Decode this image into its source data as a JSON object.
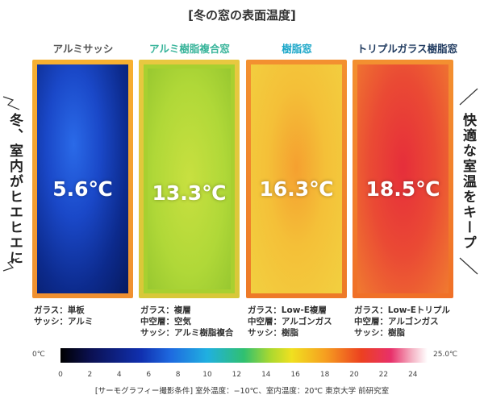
{
  "title": "[冬の窓の表面温度]",
  "left_caption": "冬、室内がヒエヒエに",
  "right_caption": "快適な室温をキープ",
  "windows": [
    {
      "name": "アルミサッシ",
      "temperature": "5.6℃",
      "specs": [
        "ガラス：単板",
        "サッシ：アルミ"
      ]
    },
    {
      "name": "アルミ樹脂複合窓",
      "temperature": "13.3℃",
      "specs": [
        "ガラス：複層",
        "中空層：空気",
        "サッシ：アルミ樹脂複合"
      ]
    },
    {
      "name": "樹脂窓",
      "temperature": "16.3℃",
      "specs": [
        "ガラス：Low-E複層",
        "中空層：アルゴンガス",
        "サッシ：樹脂"
      ]
    },
    {
      "name": "トリプルガラス樹脂窓",
      "temperature": "18.5℃",
      "specs": [
        "ガラス：Low-Eトリプル",
        "中空層：アルゴンガス",
        "サッシ：樹脂"
      ]
    }
  ],
  "scale": {
    "min_label": "0℃",
    "max_label": "25.0℃",
    "ticks": [
      0,
      2,
      4,
      6,
      8,
      10,
      12,
      14,
      16,
      18,
      20,
      22,
      24
    ]
  },
  "footnote": "[サーモグラフィー撮影条件]  室外温度：−10℃、室内温度：20℃  東京大学 前研究室"
}
